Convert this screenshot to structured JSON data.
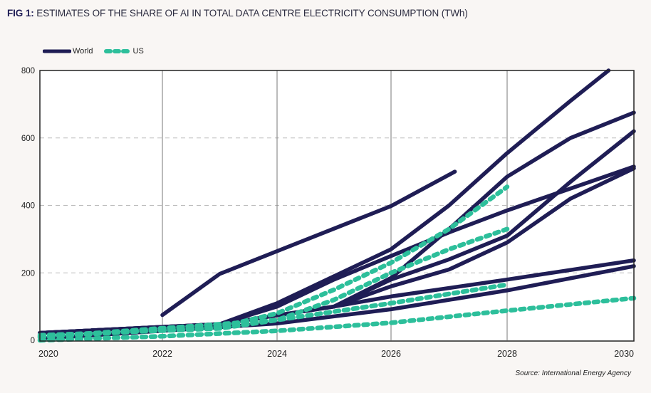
{
  "figure": {
    "label": "FIG 1:",
    "title": " ESTIMATES OF THE SHARE OF AI IN TOTAL DATA CENTRE ELECTRICITY CONSUMPTION (TWh)",
    "source": "Source: International Energy Agency"
  },
  "colors": {
    "world": "#1f1d55",
    "us": "#2dbf9b",
    "grid": "#bbbbbb",
    "vgrid": "#777777",
    "axis": "#222222"
  },
  "legend": [
    {
      "name": "World",
      "style": "solid"
    },
    {
      "name": "US",
      "style": "dashed"
    }
  ],
  "chart_data": {
    "type": "line",
    "title": "ESTIMATES OF THE SHARE OF AI IN TOTAL DATA CENTRE ELECTRICITY CONSUMPTION (TWh)",
    "xlabel": "",
    "ylabel": "TWh",
    "xlim": [
      2020,
      2030
    ],
    "ylim": [
      0,
      800
    ],
    "xticks": [
      "2020",
      "2022",
      "2024",
      "2026",
      "2028",
      "2030"
    ],
    "yticks": [
      "0",
      "200",
      "400",
      "600",
      "800"
    ],
    "grid": {
      "x": "solid",
      "y": "dashed"
    },
    "legend_position": "top-left",
    "series": [
      {
        "name": "World",
        "group": "world",
        "points": [
          [
            2022,
            75
          ],
          [
            2023,
            197
          ],
          [
            2026,
            398
          ],
          [
            2027.1,
            500
          ]
        ]
      },
      {
        "name": "World",
        "group": "world",
        "points": [
          [
            2020,
            22
          ],
          [
            2023,
            48
          ],
          [
            2024,
            110
          ],
          [
            2025,
            190
          ],
          [
            2026,
            270
          ],
          [
            2027,
            400
          ],
          [
            2028,
            555
          ],
          [
            2029,
            710
          ],
          [
            2029.6,
            800
          ]
        ]
      },
      {
        "name": "World",
        "group": "world",
        "points": [
          [
            2020,
            22
          ],
          [
            2023,
            48
          ],
          [
            2025,
            100
          ],
          [
            2026,
            185
          ],
          [
            2027,
            330
          ],
          [
            2028,
            485
          ],
          [
            2029,
            600
          ],
          [
            2030,
            675
          ]
        ]
      },
      {
        "name": "World",
        "group": "world",
        "points": [
          [
            2020,
            22
          ],
          [
            2023,
            48
          ],
          [
            2024,
            100
          ],
          [
            2025,
            180
          ],
          [
            2026,
            250
          ],
          [
            2027,
            320
          ],
          [
            2028,
            385
          ],
          [
            2030,
            515
          ]
        ]
      },
      {
        "name": "World",
        "group": "world",
        "points": [
          [
            2025,
            100
          ],
          [
            2026,
            180
          ],
          [
            2027,
            240
          ],
          [
            2028,
            310
          ],
          [
            2029,
            470
          ],
          [
            2030,
            620
          ]
        ]
      },
      {
        "name": "World",
        "group": "world",
        "points": [
          [
            2025,
            100
          ],
          [
            2026,
            160
          ],
          [
            2027,
            210
          ],
          [
            2028,
            290
          ],
          [
            2029,
            420
          ],
          [
            2030,
            510
          ]
        ]
      },
      {
        "name": "World",
        "group": "world",
        "points": [
          [
            2020,
            22
          ],
          [
            2023,
            48
          ],
          [
            2025,
            100
          ],
          [
            2026,
            130
          ],
          [
            2028,
            180
          ],
          [
            2030,
            237
          ]
        ]
      },
      {
        "name": "World",
        "group": "world",
        "points": [
          [
            2020,
            5
          ],
          [
            2024,
            50
          ],
          [
            2026,
            92
          ],
          [
            2028,
            148
          ],
          [
            2030,
            220
          ]
        ]
      },
      {
        "name": "US",
        "group": "us",
        "points": [
          [
            2020,
            10
          ],
          [
            2023,
            40
          ],
          [
            2024,
            80
          ],
          [
            2025,
            150
          ],
          [
            2026,
            230
          ],
          [
            2027,
            330
          ],
          [
            2028,
            455
          ]
        ]
      },
      {
        "name": "US",
        "group": "us",
        "points": [
          [
            2020,
            10
          ],
          [
            2024,
            60
          ],
          [
            2025,
            120
          ],
          [
            2026,
            200
          ],
          [
            2027,
            270
          ],
          [
            2028,
            330
          ]
        ]
      },
      {
        "name": "US",
        "group": "us",
        "points": [
          [
            2020,
            15
          ],
          [
            2023,
            35
          ],
          [
            2026,
            110
          ],
          [
            2028,
            165
          ]
        ]
      },
      {
        "name": "US",
        "group": "us",
        "points": [
          [
            2020,
            0
          ],
          [
            2022,
            12
          ],
          [
            2024,
            28
          ],
          [
            2026,
            52
          ],
          [
            2028,
            88
          ],
          [
            2030,
            125
          ]
        ]
      }
    ]
  }
}
